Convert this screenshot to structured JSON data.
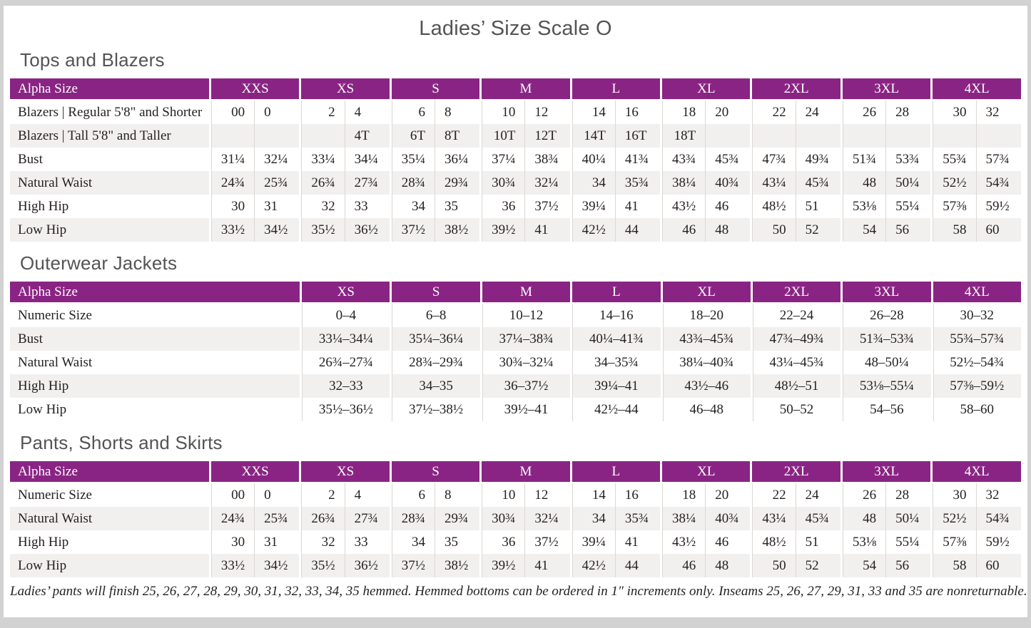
{
  "page": {
    "title": "Ladies’ Size Scale O"
  },
  "sections": [
    {
      "heading": "Tops and Blazers",
      "type": "paired",
      "header_label": "Alpha Size",
      "sizes": [
        "XXS",
        "XS",
        "S",
        "M",
        "L",
        "XL",
        "2XL",
        "3XL",
        "4XL"
      ],
      "rows": [
        {
          "label": "Blazers | Regular 5'8\" and Shorter",
          "values": [
            [
              "00",
              "0"
            ],
            [
              "2",
              "4"
            ],
            [
              "6",
              "8"
            ],
            [
              "10",
              "12"
            ],
            [
              "14",
              "16"
            ],
            [
              "18",
              "20"
            ],
            [
              "22",
              "24"
            ],
            [
              "26",
              "28"
            ],
            [
              "30",
              "32"
            ]
          ]
        },
        {
          "label": "Blazers | Tall 5'8\" and Taller",
          "values": [
            [
              "",
              ""
            ],
            [
              "",
              "4T"
            ],
            [
              "6T",
              "8T"
            ],
            [
              "10T",
              "12T"
            ],
            [
              "14T",
              "16T"
            ],
            [
              "18T",
              ""
            ],
            [
              "",
              ""
            ],
            [
              "",
              ""
            ],
            [
              "",
              ""
            ]
          ]
        },
        {
          "label": "Bust",
          "values": [
            [
              "31¼",
              "32¼"
            ],
            [
              "33¼",
              "34¼"
            ],
            [
              "35¼",
              "36¼"
            ],
            [
              "37¼",
              "38¾"
            ],
            [
              "40¼",
              "41¾"
            ],
            [
              "43¾",
              "45¾"
            ],
            [
              "47¾",
              "49¾"
            ],
            [
              "51¾",
              "53¾"
            ],
            [
              "55¾",
              "57¾"
            ]
          ]
        },
        {
          "label": "Natural Waist",
          "values": [
            [
              "24¾",
              "25¾"
            ],
            [
              "26¾",
              "27¾"
            ],
            [
              "28¾",
              "29¾"
            ],
            [
              "30¾",
              "32¼"
            ],
            [
              "34",
              "35¾"
            ],
            [
              "38¼",
              "40¾"
            ],
            [
              "43¼",
              "45¾"
            ],
            [
              "48",
              "50¼"
            ],
            [
              "52½",
              "54¾"
            ]
          ]
        },
        {
          "label": "High Hip",
          "values": [
            [
              "30",
              "31"
            ],
            [
              "32",
              "33"
            ],
            [
              "34",
              "35"
            ],
            [
              "36",
              "37½"
            ],
            [
              "39¼",
              "41"
            ],
            [
              "43½",
              "46"
            ],
            [
              "48½",
              "51"
            ],
            [
              "53⅛",
              "55¼"
            ],
            [
              "57⅜",
              "59½"
            ]
          ]
        },
        {
          "label": "Low Hip",
          "values": [
            [
              "33½",
              "34½"
            ],
            [
              "35½",
              "36½"
            ],
            [
              "37½",
              "38½"
            ],
            [
              "39½",
              "41"
            ],
            [
              "42½",
              "44"
            ],
            [
              "46",
              "48"
            ],
            [
              "50",
              "52"
            ],
            [
              "54",
              "56"
            ],
            [
              "58",
              "60"
            ]
          ]
        }
      ]
    },
    {
      "heading": "Outerwear Jackets",
      "type": "single",
      "header_label": "Alpha Size",
      "sizes": [
        "XS",
        "S",
        "M",
        "L",
        "XL",
        "2XL",
        "3XL",
        "4XL"
      ],
      "rows": [
        {
          "label": "Numeric Size",
          "values": [
            "0–4",
            "6–8",
            "10–12",
            "14–16",
            "18–20",
            "22–24",
            "26–28",
            "30–32"
          ]
        },
        {
          "label": "Bust",
          "values": [
            "33¼–34¼",
            "35¼–36¼",
            "37¼–38¾",
            "40¼–41¾",
            "43¾–45¾",
            "47¾–49¾",
            "51¾–53¾",
            "55¾–57¾"
          ]
        },
        {
          "label": "Natural Waist",
          "values": [
            "26¾–27¾",
            "28¾–29¾",
            "30¾–32¼",
            "34–35¾",
            "38¼–40¾",
            "43¼–45¾",
            "48–50¼",
            "52½–54¾"
          ]
        },
        {
          "label": "High Hip",
          "values": [
            "32–33",
            "34–35",
            "36–37½",
            "39¼–41",
            "43½–46",
            "48½–51",
            "53⅛–55¼",
            "57⅜–59½"
          ]
        },
        {
          "label": "Low Hip",
          "values": [
            "35½–36½",
            "37½–38½",
            "39½–41",
            "42½–44",
            "46–48",
            "50–52",
            "54–56",
            "58–60"
          ]
        }
      ]
    },
    {
      "heading": "Pants, Shorts and Skirts",
      "type": "paired",
      "header_label": "Alpha Size",
      "sizes": [
        "XXS",
        "XS",
        "S",
        "M",
        "L",
        "XL",
        "2XL",
        "3XL",
        "4XL"
      ],
      "rows": [
        {
          "label": "Numeric Size",
          "values": [
            [
              "00",
              "0"
            ],
            [
              "2",
              "4"
            ],
            [
              "6",
              "8"
            ],
            [
              "10",
              "12"
            ],
            [
              "14",
              "16"
            ],
            [
              "18",
              "20"
            ],
            [
              "22",
              "24"
            ],
            [
              "26",
              "28"
            ],
            [
              "30",
              "32"
            ]
          ]
        },
        {
          "label": "Natural Waist",
          "values": [
            [
              "24¾",
              "25¾"
            ],
            [
              "26¾",
              "27¾"
            ],
            [
              "28¾",
              "29¾"
            ],
            [
              "30¾",
              "32¼"
            ],
            [
              "34",
              "35¾"
            ],
            [
              "38¼",
              "40¾"
            ],
            [
              "43¼",
              "45¾"
            ],
            [
              "48",
              "50¼"
            ],
            [
              "52½",
              "54¾"
            ]
          ]
        },
        {
          "label": "High Hip",
          "values": [
            [
              "30",
              "31"
            ],
            [
              "32",
              "33"
            ],
            [
              "34",
              "35"
            ],
            [
              "36",
              "37½"
            ],
            [
              "39¼",
              "41"
            ],
            [
              "43½",
              "46"
            ],
            [
              "48½",
              "51"
            ],
            [
              "53⅛",
              "55¼"
            ],
            [
              "57⅜",
              "59½"
            ]
          ]
        },
        {
          "label": "Low Hip",
          "values": [
            [
              "33½",
              "34½"
            ],
            [
              "35½",
              "36½"
            ],
            [
              "37½",
              "38½"
            ],
            [
              "39½",
              "41"
            ],
            [
              "42½",
              "44"
            ],
            [
              "46",
              "48"
            ],
            [
              "50",
              "52"
            ],
            [
              "54",
              "56"
            ],
            [
              "58",
              "60"
            ]
          ]
        }
      ],
      "footnote": "Ladies’ pants will finish 25, 26, 27, 28, 29, 30, 31, 32, 33, 34, 35 hemmed. Hemmed bottoms can be ordered in 1″ increments only. Inseams 25, 26, 27, 29, 31, 33 and 35 are nonreturnable."
    }
  ],
  "colors": {
    "header_bg": "#8a2484",
    "header_text": "#ffffff",
    "row_alt_bg": "#f2f0ee",
    "heading_text": "#545456",
    "body_text": "#252122",
    "page_frame": "#d2d2d3"
  }
}
